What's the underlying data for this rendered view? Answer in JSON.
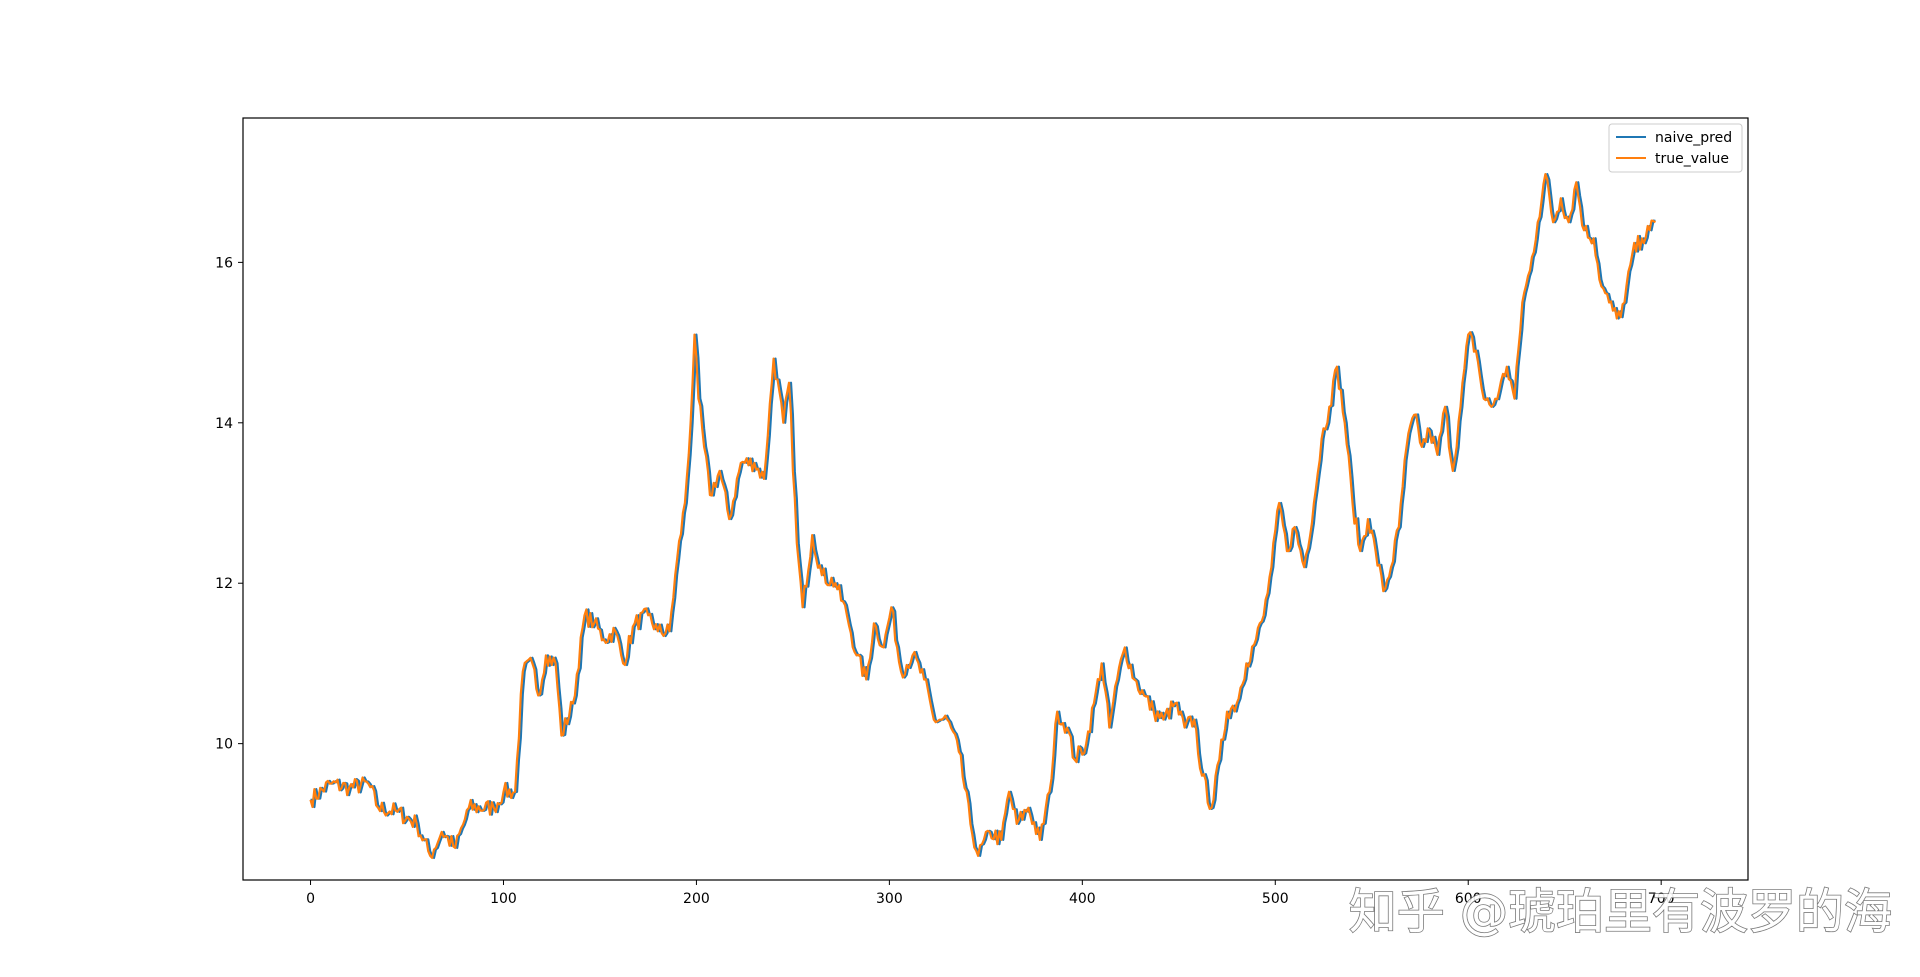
{
  "chart_data": {
    "type": "line",
    "title": "",
    "xlabel": "",
    "ylabel": "",
    "xlim": [
      -35,
      745
    ],
    "ylim": [
      8.3,
      17.8
    ],
    "xticks": [
      0,
      100,
      200,
      300,
      400,
      500,
      600,
      700
    ],
    "yticks": [
      10,
      12,
      14,
      16
    ],
    "grid": false,
    "legend_position": "top-right",
    "series": [
      {
        "name": "naive_pred",
        "color": "#1f77b4",
        "shift": 1,
        "values": []
      },
      {
        "name": "true_value",
        "color": "#ff7f0e",
        "shift": 0,
        "keypoints": [
          [
            0,
            9.3
          ],
          [
            10,
            9.5
          ],
          [
            20,
            9.45
          ],
          [
            30,
            9.5
          ],
          [
            35,
            9.2
          ],
          [
            45,
            9.15
          ],
          [
            55,
            9.0
          ],
          [
            62,
            8.6
          ],
          [
            68,
            8.9
          ],
          [
            75,
            8.7
          ],
          [
            82,
            9.2
          ],
          [
            95,
            9.2
          ],
          [
            100,
            9.4
          ],
          [
            106,
            9.4
          ],
          [
            110,
            10.9
          ],
          [
            115,
            11.0
          ],
          [
            118,
            10.6
          ],
          [
            122,
            11.1
          ],
          [
            127,
            11.0
          ],
          [
            130,
            10.1
          ],
          [
            136,
            10.5
          ],
          [
            142,
            11.6
          ],
          [
            147,
            11.5
          ],
          [
            152,
            11.3
          ],
          [
            158,
            11.4
          ],
          [
            162,
            11.0
          ],
          [
            168,
            11.5
          ],
          [
            175,
            11.6
          ],
          [
            180,
            11.4
          ],
          [
            186,
            11.4
          ],
          [
            190,
            12.3
          ],
          [
            194,
            13.0
          ],
          [
            197,
            14.0
          ],
          [
            199,
            15.1
          ],
          [
            201,
            14.3
          ],
          [
            204,
            13.7
          ],
          [
            207,
            13.1
          ],
          [
            212,
            13.4
          ],
          [
            217,
            12.8
          ],
          [
            223,
            13.5
          ],
          [
            230,
            13.5
          ],
          [
            235,
            13.3
          ],
          [
            240,
            14.8
          ],
          [
            245,
            14.0
          ],
          [
            248,
            14.5
          ],
          [
            252,
            12.5
          ],
          [
            255,
            11.7
          ],
          [
            260,
            12.6
          ],
          [
            265,
            12.1
          ],
          [
            272,
            12.0
          ],
          [
            278,
            11.6
          ],
          [
            283,
            11.1
          ],
          [
            288,
            10.8
          ],
          [
            292,
            11.5
          ],
          [
            297,
            11.2
          ],
          [
            301,
            11.7
          ],
          [
            306,
            10.9
          ],
          [
            312,
            11.1
          ],
          [
            318,
            10.8
          ],
          [
            323,
            10.3
          ],
          [
            330,
            10.3
          ],
          [
            336,
            9.9
          ],
          [
            342,
            9.0
          ],
          [
            346,
            8.6
          ],
          [
            352,
            8.9
          ],
          [
            358,
            8.8
          ],
          [
            362,
            9.4
          ],
          [
            366,
            9.0
          ],
          [
            372,
            9.2
          ],
          [
            378,
            8.8
          ],
          [
            383,
            9.4
          ],
          [
            387,
            10.4
          ],
          [
            392,
            10.2
          ],
          [
            396,
            9.8
          ],
          [
            402,
            10.0
          ],
          [
            406,
            10.5
          ],
          [
            410,
            11.0
          ],
          [
            414,
            10.2
          ],
          [
            418,
            10.8
          ],
          [
            422,
            11.2
          ],
          [
            427,
            10.8
          ],
          [
            432,
            10.6
          ],
          [
            437,
            10.4
          ],
          [
            442,
            10.3
          ],
          [
            448,
            10.5
          ],
          [
            453,
            10.2
          ],
          [
            458,
            10.3
          ],
          [
            462,
            9.6
          ],
          [
            467,
            9.2
          ],
          [
            471,
            9.8
          ],
          [
            475,
            10.4
          ],
          [
            480,
            10.5
          ],
          [
            485,
            11.0
          ],
          [
            490,
            11.3
          ],
          [
            494,
            11.6
          ],
          [
            498,
            12.2
          ],
          [
            502,
            13.0
          ],
          [
            506,
            12.4
          ],
          [
            510,
            12.7
          ],
          [
            515,
            12.2
          ],
          [
            520,
            13.0
          ],
          [
            524,
            13.8
          ],
          [
            528,
            14.2
          ],
          [
            532,
            14.7
          ],
          [
            536,
            14.0
          ],
          [
            540,
            13.0
          ],
          [
            544,
            12.4
          ],
          [
            548,
            12.8
          ],
          [
            552,
            12.4
          ],
          [
            556,
            11.9
          ],
          [
            560,
            12.2
          ],
          [
            564,
            12.7
          ],
          [
            568,
            13.7
          ],
          [
            572,
            14.1
          ],
          [
            576,
            13.7
          ],
          [
            580,
            13.9
          ],
          [
            584,
            13.6
          ],
          [
            588,
            14.2
          ],
          [
            592,
            13.4
          ],
          [
            596,
            14.2
          ],
          [
            600,
            15.1
          ],
          [
            604,
            14.9
          ],
          [
            608,
            14.3
          ],
          [
            612,
            14.2
          ],
          [
            616,
            14.4
          ],
          [
            620,
            14.7
          ],
          [
            624,
            14.3
          ],
          [
            628,
            15.5
          ],
          [
            632,
            15.9
          ],
          [
            636,
            16.5
          ],
          [
            640,
            17.1
          ],
          [
            644,
            16.5
          ],
          [
            648,
            16.8
          ],
          [
            652,
            16.5
          ],
          [
            656,
            17.0
          ],
          [
            660,
            16.4
          ],
          [
            665,
            16.3
          ],
          [
            669,
            15.7
          ],
          [
            673,
            15.5
          ],
          [
            677,
            15.3
          ],
          [
            681,
            15.5
          ],
          [
            685,
            16.1
          ],
          [
            690,
            16.3
          ],
          [
            694,
            16.4
          ],
          [
            697,
            16.5
          ]
        ]
      }
    ]
  },
  "watermark": "知乎 @琥珀里有波罗的海",
  "colors": {
    "axis": "#000000",
    "background": "#ffffff"
  }
}
